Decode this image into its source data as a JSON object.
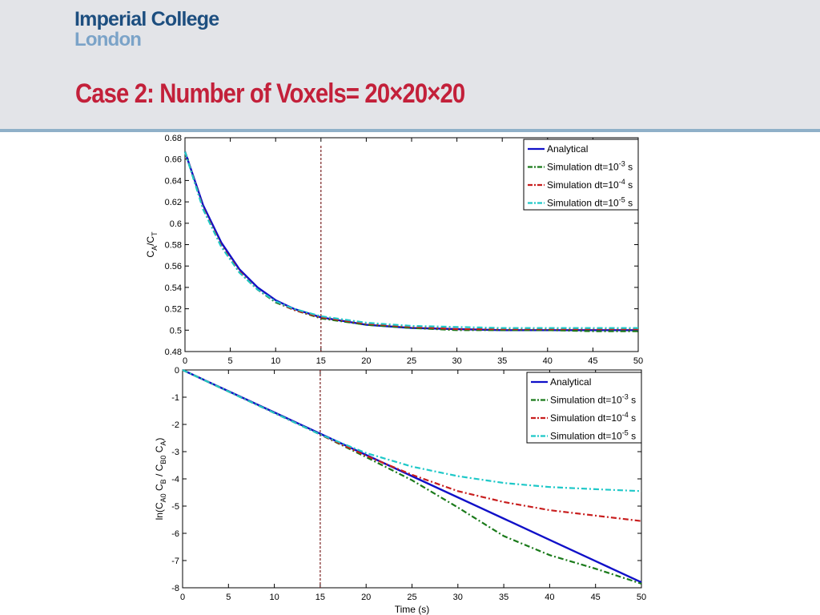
{
  "header": {
    "logo_line1": "Imperial College",
    "logo_line2": "London",
    "title": "Case 2: Number of Voxels= 20×20×20"
  },
  "colors": {
    "Analytical": "#1010c8",
    "sim_1e-3": "#1a7a1a",
    "sim_1e-4": "#c81e1e",
    "sim_1e-5": "#1ec8c8",
    "marker_line": "#7a2020"
  },
  "chart_data": [
    {
      "type": "line",
      "title": "",
      "xlabel": "",
      "ylabel": "C_A/C_T",
      "xlim": [
        0,
        50
      ],
      "ylim": [
        0.48,
        0.68
      ],
      "xticks": [
        0,
        5,
        10,
        15,
        20,
        25,
        30,
        35,
        40,
        45,
        50
      ],
      "yticks": [
        0.48,
        0.5,
        0.52,
        0.54,
        0.56,
        0.58,
        0.6,
        0.62,
        0.64,
        0.66,
        0.68
      ],
      "vline_x": 15,
      "legend_position": "top-right",
      "x": [
        0,
        2,
        4,
        6,
        8,
        10,
        12,
        15,
        20,
        25,
        30,
        35,
        40,
        45,
        50
      ],
      "series": [
        {
          "name": "Analytical",
          "style": "solid",
          "values": [
            0.667,
            0.617,
            0.582,
            0.557,
            0.54,
            0.528,
            0.52,
            0.512,
            0.505,
            0.502,
            0.501,
            0.5,
            0.5,
            0.5,
            0.5
          ]
        },
        {
          "name": "Simulation dt=10^-3 s",
          "style": "dashdot",
          "values": [
            0.667,
            0.614,
            0.579,
            0.554,
            0.538,
            0.526,
            0.519,
            0.511,
            0.505,
            0.502,
            0.5,
            0.5,
            0.5,
            0.499,
            0.499
          ]
        },
        {
          "name": "Simulation dt=10^-4 s",
          "style": "dashdot",
          "values": [
            0.667,
            0.614,
            0.579,
            0.555,
            0.538,
            0.527,
            0.519,
            0.512,
            0.506,
            0.503,
            0.501,
            0.501,
            0.501,
            0.501,
            0.501
          ]
        },
        {
          "name": "Simulation dt=10^-5 s",
          "style": "dashdot",
          "values": [
            0.667,
            0.613,
            0.578,
            0.554,
            0.538,
            0.527,
            0.52,
            0.513,
            0.507,
            0.504,
            0.503,
            0.502,
            0.502,
            0.502,
            0.502
          ]
        }
      ]
    },
    {
      "type": "line",
      "title": "",
      "xlabel": "Time (s)",
      "ylabel": "ln(C_A0 C_B / C_B0 C_A)",
      "xlim": [
        0,
        50
      ],
      "ylim": [
        -8,
        0
      ],
      "xticks": [
        0,
        5,
        10,
        15,
        20,
        25,
        30,
        35,
        40,
        45,
        50
      ],
      "yticks": [
        0,
        -1,
        -2,
        -3,
        -4,
        -5,
        -6,
        -7,
        -8
      ],
      "vline_x": 15,
      "legend_position": "top-right",
      "x": [
        0,
        5,
        10,
        15,
        20,
        25,
        30,
        35,
        40,
        45,
        50
      ],
      "series": [
        {
          "name": "Analytical",
          "style": "solid",
          "values": [
            0,
            -0.78,
            -1.56,
            -2.34,
            -3.12,
            -3.9,
            -4.68,
            -5.46,
            -6.24,
            -7.02,
            -7.8
          ]
        },
        {
          "name": "Simulation dt=10^-3 s",
          "style": "dashdot",
          "values": [
            0,
            -0.79,
            -1.58,
            -2.37,
            -3.2,
            -4.05,
            -5.05,
            -6.1,
            -6.8,
            -7.3,
            -7.85
          ]
        },
        {
          "name": "Simulation dt=10^-4 s",
          "style": "dashdot",
          "values": [
            0,
            -0.79,
            -1.58,
            -2.37,
            -3.15,
            -3.85,
            -4.45,
            -4.85,
            -5.15,
            -5.35,
            -5.55
          ]
        },
        {
          "name": "Simulation dt=10^-5 s",
          "style": "dashdot",
          "values": [
            0,
            -0.79,
            -1.58,
            -2.37,
            -3.05,
            -3.55,
            -3.9,
            -4.15,
            -4.3,
            -4.38,
            -4.45
          ]
        }
      ]
    }
  ]
}
